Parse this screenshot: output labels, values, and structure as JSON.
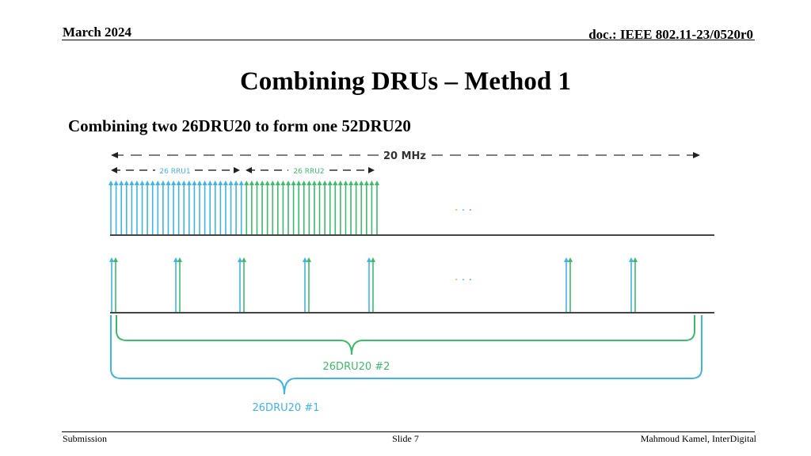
{
  "header": {
    "date": "March 2024",
    "doc": "doc.: IEEE 802.11-23/0520r0"
  },
  "title": "Combining DRUs – Method 1",
  "subtitle": "Combining two 26DRU20 to form one 52DRU20",
  "diagram": {
    "bandwidth_label": "20 MHz",
    "rru1_label": "26 RRU1",
    "rru2_label": "26 RRU2",
    "ellipsis": "· · ·",
    "bracket_inner_label": "26DRU20 #2",
    "bracket_outer_label": "26DRU20 #1",
    "colors": {
      "rru1": "#3fb4e8",
      "rru2": "#3dbb6a",
      "baseline": "#444444",
      "ellipsis_dot_a": "#f0a030"
    },
    "rru1_tone_count": 26,
    "rru2_tone_count": 26,
    "dru_pair_count": 7
  },
  "footer": {
    "left": "Submission",
    "center": "Slide 7",
    "right": "Mahmoud Kamel, InterDigital"
  }
}
